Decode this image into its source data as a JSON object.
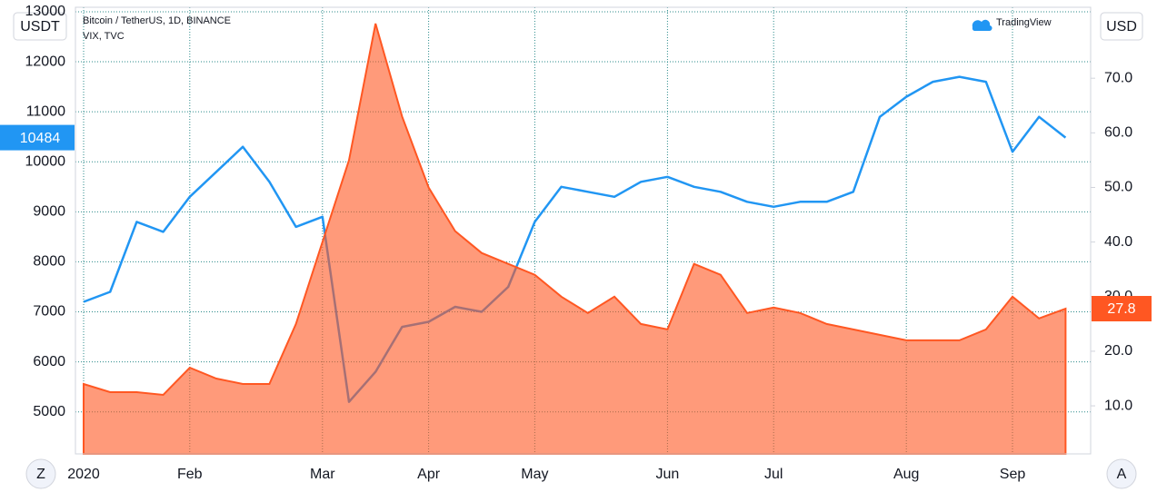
{
  "chart_data": {
    "type": "line",
    "title": "Bitcoin / TetherUS, 1D, BINANCE",
    "subtitle": "VIX, TVC",
    "brand": "TradingView",
    "y_unit": "USDT",
    "y2_unit": "USD",
    "buttons": [
      "Z",
      "A"
    ],
    "categories": [
      "2020",
      null,
      null,
      null,
      "Feb",
      null,
      null,
      null,
      null,
      "Mar",
      null,
      null,
      null,
      "Apr",
      null,
      null,
      null,
      "May",
      null,
      null,
      null,
      null,
      "Jun",
      null,
      null,
      null,
      "Jul",
      null,
      null,
      null,
      null,
      "Aug",
      null,
      null,
      null,
      "Sep",
      null,
      null
    ],
    "series": [
      {
        "name": "Bitcoin / TetherUS",
        "color": "#2196f3",
        "style": "line",
        "values": [
          7200,
          7400,
          8800,
          8600,
          9300,
          9800,
          10300,
          9600,
          8700,
          8900,
          5200,
          5800,
          6700,
          6800,
          7100,
          7000,
          7500,
          8800,
          9500,
          9400,
          9300,
          9600,
          9700,
          9500,
          9400,
          9200,
          9100,
          9200,
          9200,
          9400,
          10900,
          11300,
          11600,
          11700,
          11600,
          10200,
          10900,
          10484
        ]
      },
      {
        "name": "VIX",
        "color": "#ff5722",
        "style": "area",
        "axis": "y2",
        "values": [
          14,
          12.5,
          12.5,
          12,
          17,
          15,
          14,
          14,
          25,
          40,
          55,
          80,
          63,
          50,
          42,
          38,
          36,
          34,
          30,
          27,
          30,
          25,
          24,
          36,
          34,
          27,
          28,
          27,
          25,
          24,
          23,
          22,
          22,
          22,
          24,
          30,
          26,
          27.8
        ]
      }
    ],
    "ylim": [
      4160,
      13090
    ],
    "yticks": [
      5000,
      6000,
      7000,
      8000,
      9000,
      10000,
      11000,
      12000,
      13000
    ],
    "y2lim": [
      1.2,
      83
    ],
    "y2ticks": [
      {
        "value": 10,
        "label": "10.0"
      },
      {
        "value": 20,
        "label": "20.0"
      },
      {
        "value": 30,
        "label": "30.0"
      },
      {
        "value": 40,
        "label": "40.0"
      },
      {
        "value": 50,
        "label": "50.0"
      },
      {
        "value": 60,
        "label": "60.0"
      },
      {
        "value": 70,
        "label": "70.0"
      }
    ],
    "grid": true
  }
}
